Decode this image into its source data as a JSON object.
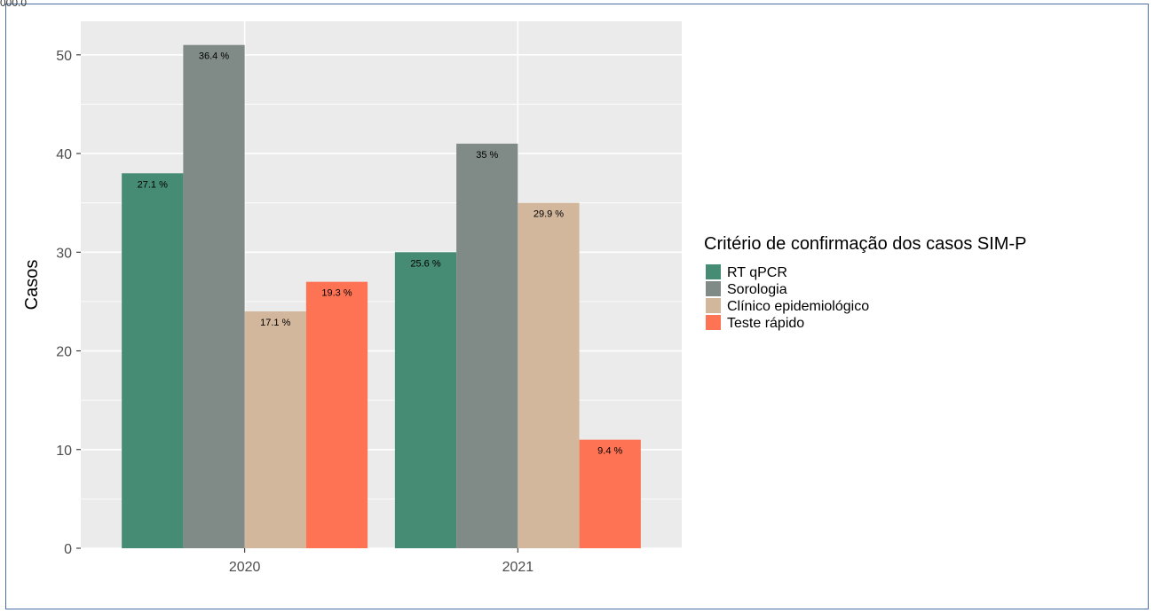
{
  "corner_text": "000.0",
  "chart_data": {
    "type": "bar",
    "categories": [
      "2020",
      "2021"
    ],
    "series": [
      {
        "name": "RT qPCR",
        "color": "#468B73",
        "values": [
          38,
          30
        ],
        "labels": [
          "27.1 %",
          "25.6 %"
        ]
      },
      {
        "name": "Sorologia",
        "color": "#808A87",
        "values": [
          51,
          41
        ],
        "labels": [
          "36.4 %",
          "35 %"
        ]
      },
      {
        "name": "Clínico epidemiológico",
        "color": "#D2B79C",
        "values": [
          24,
          35
        ],
        "labels": [
          "17.1 %",
          "29.9 %"
        ]
      },
      {
        "name": "Teste rápido",
        "color": "#FF7355",
        "values": [
          27,
          11
        ],
        "labels": [
          "19.3 %",
          "9.4 %"
        ]
      }
    ],
    "xlabel": "",
    "ylabel": "Casos",
    "ylim": [
      0,
      53.4
    ],
    "yticks": [
      0,
      10,
      20,
      30,
      40,
      50
    ],
    "grid": true,
    "legend": {
      "title": "Critério de confirmação dos casos SIM-P",
      "placement": "right"
    }
  }
}
